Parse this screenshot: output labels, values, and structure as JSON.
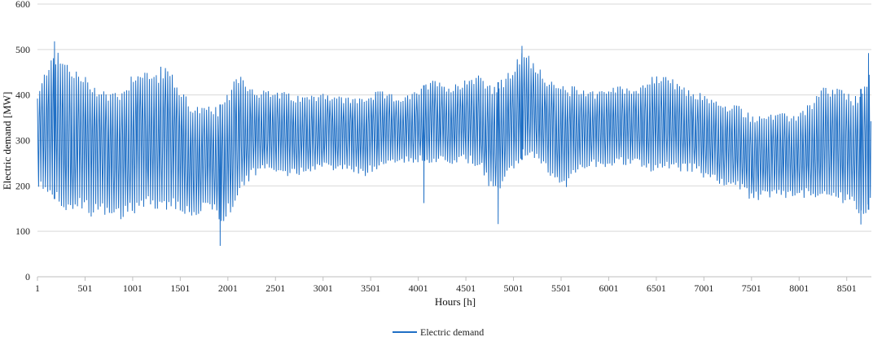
{
  "chart_data": {
    "type": "line",
    "xlabel": "Hours [h]",
    "ylabel": "Electric demand [MW]",
    "xlim": [
      1,
      8760
    ],
    "ylim": [
      0,
      600
    ],
    "y_ticks": [
      0,
      100,
      200,
      300,
      400,
      500,
      600
    ],
    "x_ticks": [
      1,
      501,
      1001,
      1501,
      2001,
      2501,
      3001,
      3501,
      4001,
      4501,
      5001,
      5501,
      6001,
      6501,
      7001,
      7501,
      8001,
      8501
    ],
    "grid": "horizontal",
    "legend_position": "bottom-center",
    "series": [
      {
        "name": "Electric demand",
        "color": "#1f6fc5",
        "envelope": {
          "hours": [
            1,
            150,
            300,
            450,
            600,
            750,
            900,
            1050,
            1200,
            1350,
            1500,
            1650,
            1800,
            1950,
            2100,
            2250,
            2400,
            2550,
            2700,
            2850,
            3000,
            3150,
            3300,
            3450,
            3600,
            3750,
            3900,
            4050,
            4200,
            4350,
            4500,
            4650,
            4800,
            4950,
            5100,
            5250,
            5400,
            5550,
            5700,
            5850,
            6000,
            6150,
            6300,
            6450,
            6600,
            6750,
            6900,
            7050,
            7200,
            7350,
            7500,
            7650,
            7800,
            7950,
            8100,
            8250,
            8400,
            8550,
            8700,
            8760
          ],
          "peaks": [
            400,
            505,
            480,
            450,
            430,
            410,
            420,
            470,
            450,
            470,
            420,
            380,
            375,
            380,
            460,
            420,
            410,
            410,
            400,
            400,
            410,
            400,
            395,
            400,
            410,
            400,
            400,
            420,
            440,
            420,
            440,
            450,
            420,
            450,
            500,
            470,
            430,
            420,
            420,
            410,
            420,
            420,
            420,
            440,
            450,
            420,
            410,
            400,
            380,
            380,
            360,
            360,
            360,
            360,
            380,
            420,
            420,
            400,
            420,
            480
          ],
          "troughs": [
            190,
            180,
            135,
            140,
            130,
            130,
            125,
            140,
            150,
            140,
            140,
            120,
            150,
            110,
            170,
            215,
            230,
            220,
            220,
            230,
            240,
            230,
            230,
            220,
            240,
            250,
            250,
            250,
            250,
            240,
            250,
            235,
            170,
            220,
            260,
            250,
            220,
            195,
            230,
            240,
            240,
            245,
            240,
            230,
            240,
            230,
            230,
            210,
            200,
            195,
            165,
            170,
            175,
            170,
            175,
            175,
            170,
            150,
            130,
            165
          ]
        },
        "notable_values": [
          {
            "hour": 180,
            "value": 518
          },
          {
            "hour": 1920,
            "value": 68
          },
          {
            "hour": 4060,
            "value": 162
          },
          {
            "hour": 4840,
            "value": 116
          },
          {
            "hour": 5090,
            "value": 508
          },
          {
            "hour": 8650,
            "value": 115
          },
          {
            "hour": 8730,
            "value": 492
          }
        ]
      }
    ]
  }
}
